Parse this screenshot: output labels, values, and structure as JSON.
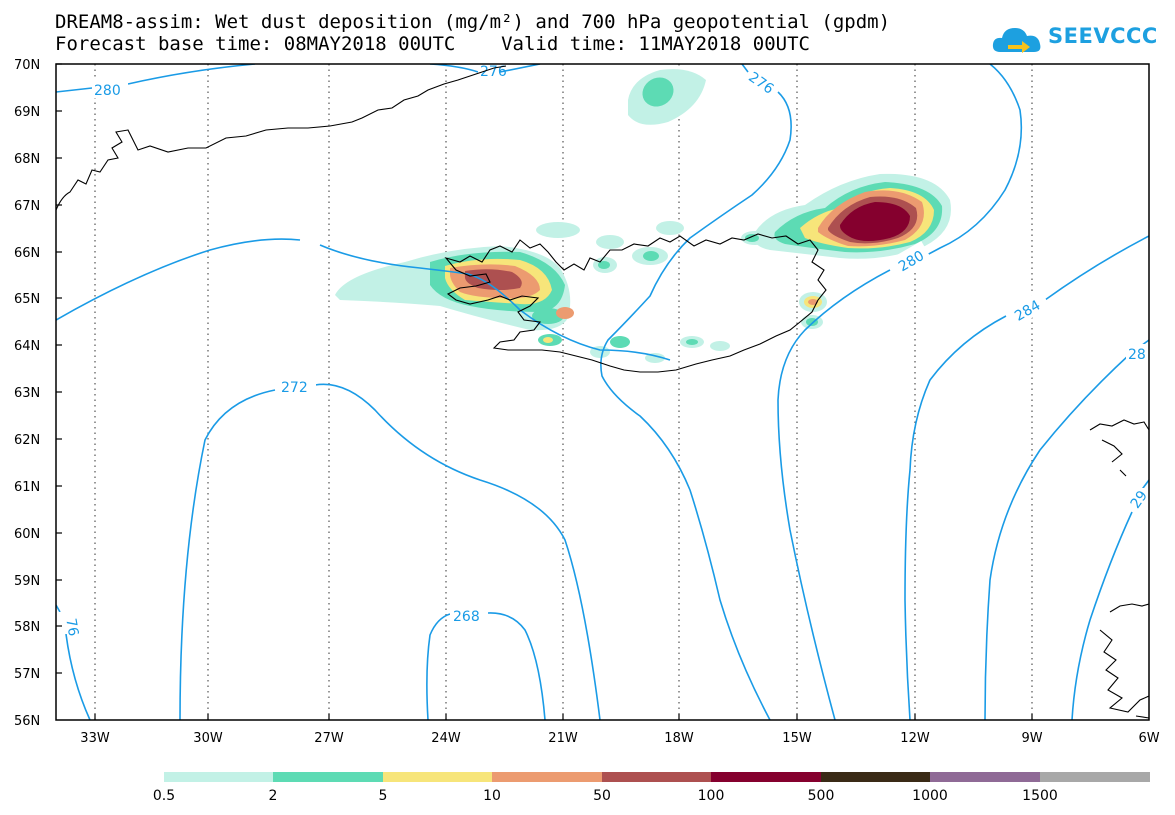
{
  "header": {
    "title_line1": "DREAM8-assim: Wet dust deposition (mg/m²) and 700 hPa geopotential (gpdm)",
    "title_line2": "Forecast base time: 08MAY2018 00UTC    Valid time: 11MAY2018 00UTC"
  },
  "logo": {
    "text": "SEEVCCC",
    "icon": "cloud-arrow-icon",
    "color": "#1da0e0"
  },
  "map": {
    "lat_labels": [
      "70N",
      "69N",
      "68N",
      "67N",
      "66N",
      "65N",
      "64N",
      "63N",
      "62N",
      "61N",
      "60N",
      "59N",
      "58N",
      "57N",
      "56N"
    ],
    "lon_labels": [
      "33W",
      "30W",
      "27W",
      "24W",
      "21W",
      "18W",
      "15W",
      "12W",
      "9W",
      "6W"
    ],
    "contour_color": "#1a9be6",
    "coast_color": "#000000",
    "contour_labels": [
      "280",
      "276",
      "276",
      "280",
      "284",
      "28",
      "29",
      "272",
      "268",
      "76"
    ]
  },
  "colorbar": {
    "colors": [
      "#c2f1e6",
      "#5ddbb4",
      "#f7e57a",
      "#ec9b70",
      "#ad5050",
      "#85002e",
      "#3a2a16",
      "#8f6a96",
      "#a8a8a8"
    ],
    "labels": [
      "0.5",
      "2",
      "5",
      "10",
      "50",
      "100",
      "500",
      "1000",
      "1500"
    ]
  }
}
